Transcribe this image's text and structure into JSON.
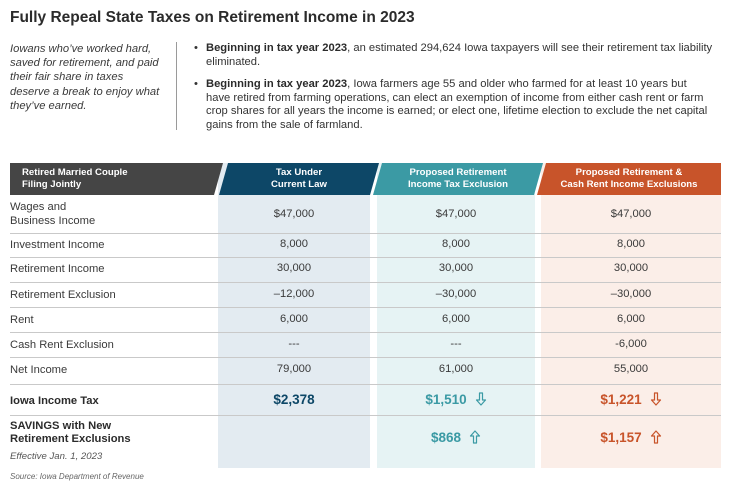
{
  "title": "Fully Repeal State Taxes on Retirement Income in 2023",
  "intro": "Iowans who’ve worked hard, saved for retirement, and paid their fair share in taxes deserve a break to enjoy what they’ve earned.",
  "bullets": [
    {
      "lead": "Beginning in tax year 2023",
      "text": ", an estimated 294,624 Iowa taxpayers will see their retirement tax liability eliminated."
    },
    {
      "lead": "Beginning in tax year 2023",
      "text": ", Iowa farmers age 55 and older who farmed for at least 10 years but have retired from farming operations, can elect an exemption of income from either cash rent or farm crop shares for all years the income is earned; or elect one, lifetime election to exclude the net capital gains from the sale of farmland."
    }
  ],
  "table": {
    "headers": {
      "label_line1": "Retired Married Couple",
      "label_line2": "Filing Jointly",
      "col1_line1": "Tax Under",
      "col1_line2": "Current Law",
      "col2_line1": "Proposed Retirement",
      "col2_line2": "Income Tax Exclusion",
      "col3_line1": "Proposed Retirement &",
      "col3_line2": "Cash Rent Income Exclusions"
    },
    "rows": [
      {
        "label_line1": "Wages and",
        "label_line2": "Business Income",
        "c1": "$47,000",
        "c2": "$47,000",
        "c3": "$47,000"
      },
      {
        "label": "Investment Income",
        "c1": "8,000",
        "c2": "8,000",
        "c3": "8,000"
      },
      {
        "label": "Retirement Income",
        "c1": "30,000",
        "c2": "30,000",
        "c3": "30,000"
      },
      {
        "label": "Retirement Exclusion",
        "c1": "–12,000",
        "c2": "–30,000",
        "c3": "–30,000"
      },
      {
        "label": "Rent",
        "c1": "6,000",
        "c2": "6,000",
        "c3": "6,000"
      },
      {
        "label": "Cash Rent Exclusion",
        "c1": "---",
        "c2": "---",
        "c3": "-6,000"
      },
      {
        "label": "Net Income",
        "c1": "79,000",
        "c2": "61,000",
        "c3": "55,000"
      }
    ],
    "tax_row": {
      "label": "Iowa Income Tax",
      "c1": "$2,378",
      "c2": "$1,510",
      "c3": "$1,221"
    },
    "savings_row": {
      "label_line1": "SAVINGS with New",
      "label_line2": "Retirement Exclusions",
      "note": "Effective Jan. 1, 2023",
      "c2": "$868",
      "c3": "$1,157"
    }
  },
  "icons": {
    "down_arrow": "down-arrow-icon",
    "up_arrow": "up-arrow-icon"
  },
  "colors": {
    "navy": "#0d4767",
    "teal": "#3b9aa4",
    "orange": "#c8542a",
    "dark": "#454545"
  },
  "source": "Source:  Iowa Department of Revenue"
}
